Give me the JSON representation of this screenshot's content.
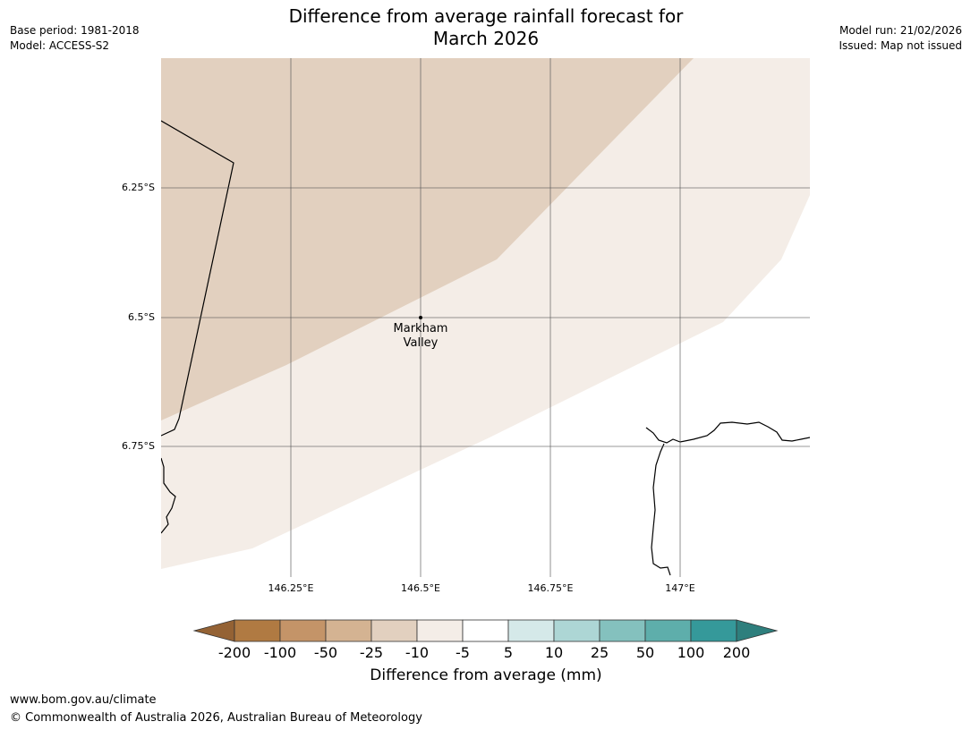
{
  "header": {
    "title_line1": "Difference from average rainfall forecast for",
    "title_line2": "March 2026",
    "base_period": "Base period: 1981-2018",
    "model": "Model: ACCESS-S2",
    "model_run": "Model run: 21/02/2026",
    "issued": "Issued: Map not issued"
  },
  "map": {
    "lat_ticks": [
      "6.25°S",
      "6.5°S",
      "6.75°S"
    ],
    "lon_ticks": [
      "146.25°E",
      "146.5°E",
      "146.75°E",
      "147°E"
    ],
    "place": {
      "name_line1": "Markham",
      "name_line2": "Valley"
    },
    "colors": {
      "band_-25_-10": "#e2d0bf",
      "band_-10_-5": "#f4ede7",
      "band_-5_5": "#ffffff"
    }
  },
  "colorbar": {
    "label": "Difference from average (mm)",
    "ticks": [
      "-200",
      "-100",
      "-50",
      "-25",
      "-10",
      "-5",
      "5",
      "10",
      "25",
      "50",
      "100",
      "200"
    ],
    "colors": [
      "#946234",
      "#b07a42",
      "#c49468",
      "#d4b392",
      "#e2d0bf",
      "#f4ede7",
      "#ffffff",
      "#d5e9e9",
      "#add6d5",
      "#84c1be",
      "#5eaeab",
      "#35999a",
      "#2e7f7d"
    ]
  },
  "footer": {
    "url": "www.bom.gov.au/climate",
    "copyright": "© Commonwealth of Australia 2026, Australian Bureau of Meteorology"
  }
}
